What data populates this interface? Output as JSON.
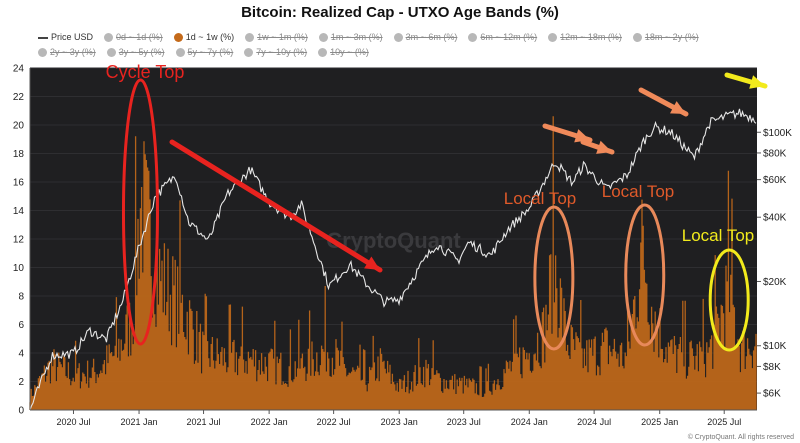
{
  "title": "Bitcoin: Realized Cap - UTXO Age Bands (%)",
  "legend": [
    {
      "label": "Price USD",
      "marker": "line",
      "active": true
    },
    {
      "label": "0d ~ 1d (%)",
      "marker": "dot",
      "active": false
    },
    {
      "label": "1d ~ 1w (%)",
      "marker": "dot",
      "active": true
    },
    {
      "label": "1w ~ 1m (%)",
      "marker": "dot",
      "active": false
    },
    {
      "label": "1m ~ 3m (%)",
      "marker": "dot",
      "active": false
    },
    {
      "label": "3m ~ 6m (%)",
      "marker": "dot",
      "active": false
    },
    {
      "label": "6m ~ 12m (%)",
      "marker": "dot",
      "active": false
    },
    {
      "label": "12m ~ 18m (%)",
      "marker": "dot",
      "active": false
    },
    {
      "label": "18m ~ 2y (%)",
      "marker": "dot",
      "active": false
    },
    {
      "label": "2y ~ 3y (%)",
      "marker": "dot",
      "active": false
    },
    {
      "label": "3y ~ 5y (%)",
      "marker": "dot",
      "active": false
    },
    {
      "label": "5y ~ 7y (%)",
      "marker": "dot",
      "active": false
    },
    {
      "label": "7y ~ 10y (%)",
      "marker": "dot",
      "active": false
    },
    {
      "label": "10y ~ (%)",
      "marker": "dot",
      "active": false
    }
  ],
  "footer": "© CryptoQuant. All rights reserved",
  "watermark": "CryptoQuant",
  "colors": {
    "background": "#1f1f21",
    "band": "#c46a1a",
    "price": "#e6e6e6",
    "red": "#e8231f",
    "orange": "#e8895a",
    "yellow": "#f2ea1c"
  },
  "chart_data": {
    "type": "area",
    "x_ticks": [
      "2020 Jul",
      "2021 Jan",
      "2021 Jul",
      "2022 Jan",
      "2022 Jul",
      "2023 Jan",
      "2023 Jul",
      "2024 Jan",
      "2024 Jul",
      "2025 Jan",
      "2025 Jul"
    ],
    "y_left_ticks": [
      0,
      2,
      4,
      6,
      8,
      10,
      12,
      14,
      16,
      18,
      20,
      22,
      24
    ],
    "y_left_range": [
      0,
      24
    ],
    "y_right_ticks": [
      "$6K",
      "$8K",
      "$10K",
      "$20K",
      "$40K",
      "$60K",
      "$80K",
      "$100K"
    ],
    "y_right_values": [
      6000,
      8000,
      10000,
      20000,
      40000,
      60000,
      80000,
      100000
    ],
    "y_right_scale": "log",
    "x_range": [
      "2020-03-01",
      "2025-10-01"
    ],
    "series": [
      {
        "name": "1d ~ 1w (%)",
        "axis": "left",
        "points": [
          [
            "2020-03-01",
            1.2
          ],
          [
            "2020-05-01",
            4.0
          ],
          [
            "2020-07-01",
            3.0
          ],
          [
            "2020-09-01",
            3.3
          ],
          [
            "2020-11-01",
            5.0
          ],
          [
            "2020-12-15",
            8.0
          ],
          [
            "2021-01-05",
            18.5
          ],
          [
            "2021-02-01",
            15.0
          ],
          [
            "2021-03-01",
            11.5
          ],
          [
            "2021-04-15",
            9.5
          ],
          [
            "2021-05-20",
            8.0
          ],
          [
            "2021-07-01",
            5.0
          ],
          [
            "2021-09-01",
            4.5
          ],
          [
            "2021-11-01",
            4.5
          ],
          [
            "2022-01-01",
            4.0
          ],
          [
            "2022-03-01",
            3.5
          ],
          [
            "2022-05-10",
            4.5
          ],
          [
            "2022-06-15",
            5.5
          ],
          [
            "2022-08-01",
            3.5
          ],
          [
            "2022-10-01",
            2.5
          ],
          [
            "2022-11-10",
            4.0
          ],
          [
            "2023-01-01",
            2.0
          ],
          [
            "2023-03-15",
            3.5
          ],
          [
            "2023-05-01",
            2.5
          ],
          [
            "2023-07-01",
            2.2
          ],
          [
            "2023-09-01",
            1.8
          ],
          [
            "2023-11-01",
            3.5
          ],
          [
            "2024-01-01",
            5.0
          ],
          [
            "2024-02-15",
            7.0
          ],
          [
            "2024-03-10",
            13.0
          ],
          [
            "2024-04-15",
            6.0
          ],
          [
            "2024-06-01",
            4.5
          ],
          [
            "2024-08-05",
            5.5
          ],
          [
            "2024-10-01",
            4.5
          ],
          [
            "2024-11-15",
            14.5
          ],
          [
            "2024-12-15",
            8.0
          ],
          [
            "2025-02-01",
            5.0
          ],
          [
            "2025-04-01",
            4.5
          ],
          [
            "2025-05-20",
            5.0
          ],
          [
            "2025-07-15",
            10.5
          ],
          [
            "2025-08-15",
            5.5
          ],
          [
            "2025-10-01",
            6.0
          ]
        ]
      },
      {
        "name": "Price USD",
        "axis": "right",
        "points": [
          [
            "2020-03-01",
            5000
          ],
          [
            "2020-05-01",
            9000
          ],
          [
            "2020-07-01",
            9200
          ],
          [
            "2020-08-15",
            11800
          ],
          [
            "2020-10-01",
            10700
          ],
          [
            "2020-11-15",
            16000
          ],
          [
            "2021-01-01",
            29000
          ],
          [
            "2021-02-15",
            50000
          ],
          [
            "2021-04-14",
            63000
          ],
          [
            "2021-05-20",
            38000
          ],
          [
            "2021-07-15",
            31000
          ],
          [
            "2021-09-05",
            51000
          ],
          [
            "2021-11-10",
            67000
          ],
          [
            "2022-01-01",
            47000
          ],
          [
            "2022-03-01",
            40000
          ],
          [
            "2022-04-01",
            46000
          ],
          [
            "2022-06-18",
            19000
          ],
          [
            "2022-08-15",
            24000
          ],
          [
            "2022-10-01",
            19500
          ],
          [
            "2022-11-21",
            16000
          ],
          [
            "2023-01-01",
            16500
          ],
          [
            "2023-03-01",
            23500
          ],
          [
            "2023-04-15",
            30000
          ],
          [
            "2023-06-15",
            25000
          ],
          [
            "2023-07-15",
            30500
          ],
          [
            "2023-09-15",
            26500
          ],
          [
            "2023-11-01",
            35000
          ],
          [
            "2024-01-01",
            44000
          ],
          [
            "2024-03-14",
            73000
          ],
          [
            "2024-05-01",
            58000
          ],
          [
            "2024-06-01",
            70000
          ],
          [
            "2024-08-05",
            54000
          ],
          [
            "2024-10-01",
            63000
          ],
          [
            "2024-11-15",
            90000
          ],
          [
            "2024-12-17",
            106000
          ],
          [
            "2025-02-01",
            100000
          ],
          [
            "2025-04-08",
            76000
          ],
          [
            "2025-05-22",
            111000
          ],
          [
            "2025-07-14",
            120000
          ],
          [
            "2025-08-14",
            123000
          ],
          [
            "2025-10-01",
            115000
          ]
        ]
      }
    ],
    "annotations": [
      {
        "text": "Cycle Top",
        "color": "red"
      },
      {
        "text": "Local Top",
        "color": "orange"
      },
      {
        "text": "Local Top",
        "color": "orange"
      },
      {
        "text": "Local Top",
        "color": "yellow"
      }
    ]
  }
}
